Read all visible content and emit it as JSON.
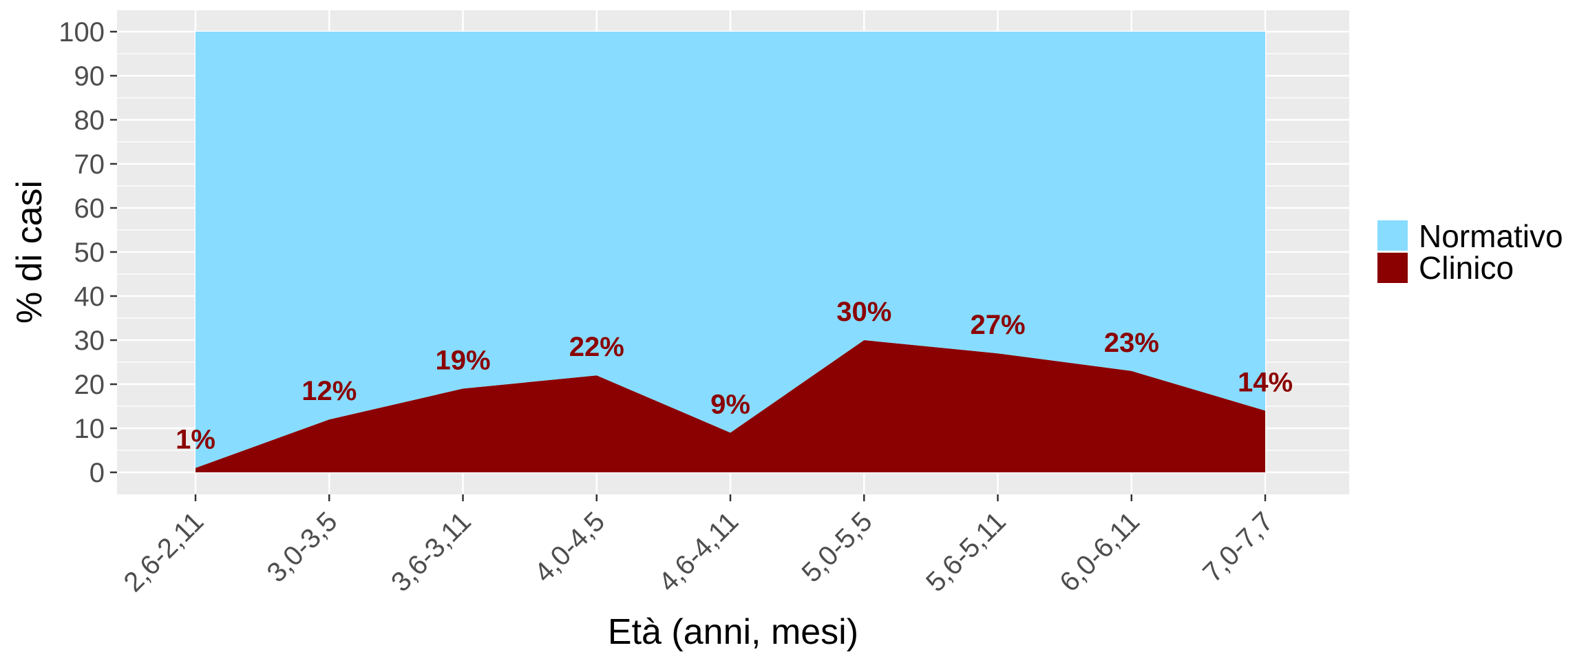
{
  "chart_data": {
    "type": "area",
    "stacked": true,
    "percent_stacked": true,
    "categories": [
      "2,6-2,11",
      "3,0-3,5",
      "3,6-3,11",
      "4,0-4,5",
      "4,6-4,11",
      "5,0-5,5",
      "5,6-5,11",
      "6,0-6,11",
      "7,0-7,7"
    ],
    "series": [
      {
        "name": "Clinico",
        "values": [
          1,
          12,
          19,
          22,
          9,
          30,
          27,
          23,
          14
        ],
        "color": "#8B0000"
      },
      {
        "name": "Normativo",
        "values": [
          99,
          88,
          81,
          78,
          91,
          70,
          73,
          77,
          86
        ],
        "color": "#87DCFF"
      }
    ],
    "data_labels": [
      "1%",
      "12%",
      "19%",
      "22%",
      "9%",
      "30%",
      "27%",
      "23%",
      "14%"
    ],
    "data_label_color": "#8B0000",
    "xlabel": "Età (anni, mesi)",
    "ylabel": "% di casi",
    "ylim": [
      0,
      100
    ],
    "yticks": [
      0,
      10,
      20,
      30,
      40,
      50,
      60,
      70,
      80,
      90,
      100
    ],
    "grid": true,
    "panel_background": "#EBEBEB",
    "legend": {
      "position": "right",
      "entries": [
        {
          "label": "Normativo",
          "color": "#87DCFF"
        },
        {
          "label": "Clinico",
          "color": "#8B0000"
        }
      ]
    }
  }
}
